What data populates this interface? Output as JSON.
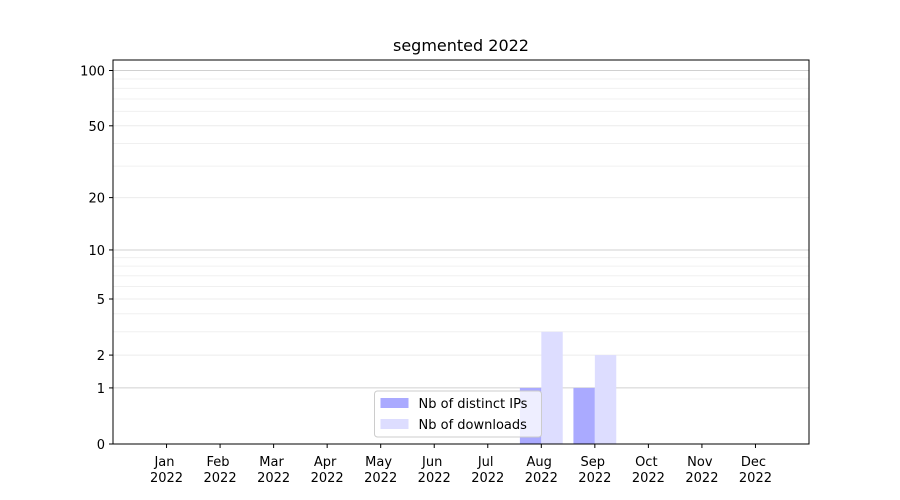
{
  "chart_data": {
    "type": "bar",
    "title": "segmented 2022",
    "categories": [
      "Jan 2022",
      "Feb 2022",
      "Mar 2022",
      "Apr 2022",
      "May 2022",
      "Jun 2022",
      "Jul 2022",
      "Aug 2022",
      "Sep 2022",
      "Oct 2022",
      "Nov 2022",
      "Dec 2022"
    ],
    "series": [
      {
        "name": "Nb of distinct IPs",
        "color": "#aaaaff",
        "values": [
          0,
          0,
          0,
          0,
          0,
          0,
          0,
          1,
          1,
          0,
          0,
          0
        ]
      },
      {
        "name": "Nb of downloads",
        "color": "#ddddff",
        "values": [
          0,
          0,
          0,
          0,
          0,
          0,
          0,
          3,
          2,
          0,
          0,
          0
        ]
      }
    ],
    "yscale": "symlog",
    "ylim": [
      0,
      114
    ],
    "yticks": [
      0,
      1,
      2,
      5,
      10,
      20,
      50,
      100
    ],
    "minor_yticks": [
      3,
      4,
      6,
      7,
      8,
      9,
      30,
      40,
      60,
      70,
      80,
      90
    ],
    "grid": true,
    "legend": "lower center"
  }
}
